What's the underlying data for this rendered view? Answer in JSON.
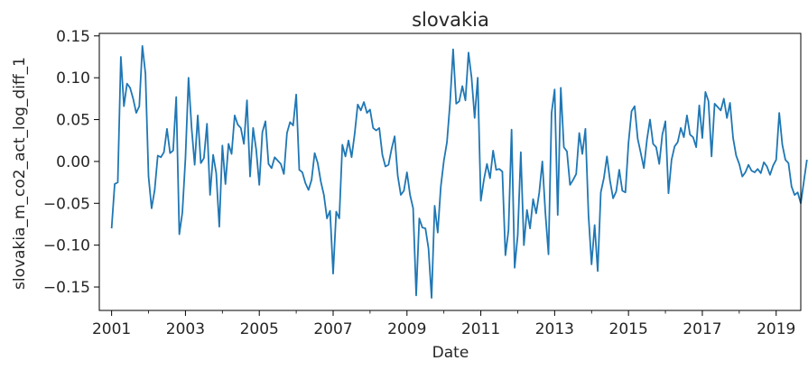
{
  "chart_data": {
    "type": "line",
    "title": "slovakia",
    "xlabel": "Date",
    "ylabel": "slovakia_m_co2_act_log_diff_1",
    "x_range": [
      "2000-09",
      "2019-09"
    ],
    "ylim": [
      -0.178,
      0.153
    ],
    "x_ticks": [
      "2001",
      "2003",
      "2005",
      "2007",
      "2009",
      "2011",
      "2013",
      "2015",
      "2017",
      "2019"
    ],
    "y_ticks": [
      "0.15",
      "0.10",
      "0.05",
      "0.00",
      "−0.05",
      "−0.10",
      "−0.15"
    ],
    "grid": false,
    "series": [
      {
        "color": "#1f77b4",
        "start": "2001-01",
        "frequency": "monthly",
        "values": [
          -0.08,
          -0.027,
          -0.025,
          0.125,
          0.066,
          0.093,
          0.088,
          0.075,
          0.058,
          0.066,
          0.138,
          0.105,
          -0.018,
          -0.056,
          -0.034,
          0.007,
          0.005,
          0.011,
          0.039,
          0.01,
          0.013,
          0.077,
          -0.087,
          -0.061,
          0.004,
          0.1,
          0.04,
          -0.004,
          0.055,
          -0.002,
          0.004,
          0.045,
          -0.04,
          0.008,
          -0.014,
          -0.078,
          0.019,
          -0.027,
          0.021,
          0.009,
          0.055,
          0.044,
          0.04,
          0.021,
          0.073,
          -0.018,
          0.04,
          0.014,
          -0.028,
          0.035,
          0.048,
          -0.003,
          -0.008,
          0.005,
          0.001,
          -0.003,
          -0.015,
          0.034,
          0.047,
          0.043,
          0.08,
          -0.01,
          -0.013,
          -0.026,
          -0.034,
          -0.022,
          0.01,
          -0.002,
          -0.024,
          -0.04,
          -0.068,
          -0.059,
          -0.134,
          -0.06,
          -0.068,
          0.02,
          0.006,
          0.025,
          0.005,
          0.033,
          0.068,
          0.061,
          0.071,
          0.058,
          0.062,
          0.04,
          0.037,
          0.04,
          0.008,
          -0.006,
          -0.004,
          0.015,
          0.03,
          -0.017,
          -0.04,
          -0.035,
          -0.013,
          -0.04,
          -0.056,
          -0.16,
          -0.068,
          -0.079,
          -0.08,
          -0.104,
          -0.163,
          -0.053,
          -0.085,
          -0.03,
          0.001,
          0.023,
          0.07,
          0.134,
          0.069,
          0.072,
          0.09,
          0.073,
          0.13,
          0.1,
          0.052,
          0.1,
          -0.047,
          -0.022,
          -0.003,
          -0.02,
          0.013,
          -0.01,
          -0.009,
          -0.012,
          -0.112,
          -0.082,
          0.038,
          -0.127,
          -0.088,
          0.011,
          -0.1,
          -0.058,
          -0.08,
          -0.045,
          -0.062,
          -0.037,
          0.0,
          -0.062,
          -0.111,
          0.058,
          0.086,
          -0.064,
          0.088,
          0.017,
          0.012,
          -0.028,
          -0.022,
          -0.015,
          0.034,
          0.009,
          0.039,
          -0.064,
          -0.123,
          -0.076,
          -0.131,
          -0.037,
          -0.02,
          0.006,
          -0.023,
          -0.044,
          -0.036,
          -0.01,
          -0.035,
          -0.037,
          0.022,
          0.06,
          0.066,
          0.027,
          0.01,
          -0.008,
          0.026,
          0.05,
          0.021,
          0.017,
          -0.003,
          0.032,
          0.048,
          -0.038,
          0.002,
          0.018,
          0.023,
          0.04,
          0.029,
          0.055,
          0.032,
          0.029,
          0.017,
          0.067,
          0.028,
          0.083,
          0.072,
          0.006,
          0.069,
          0.065,
          0.061,
          0.075,
          0.052,
          0.07,
          0.028,
          0.007,
          -0.003,
          -0.018,
          -0.013,
          -0.004,
          -0.011,
          -0.013,
          -0.009,
          -0.014,
          -0.001,
          -0.006,
          -0.016,
          -0.005,
          0.002,
          0.058,
          0.02,
          0.002,
          -0.002,
          -0.03,
          -0.04,
          -0.037,
          -0.05,
          -0.024,
          0.002
        ]
      }
    ]
  }
}
